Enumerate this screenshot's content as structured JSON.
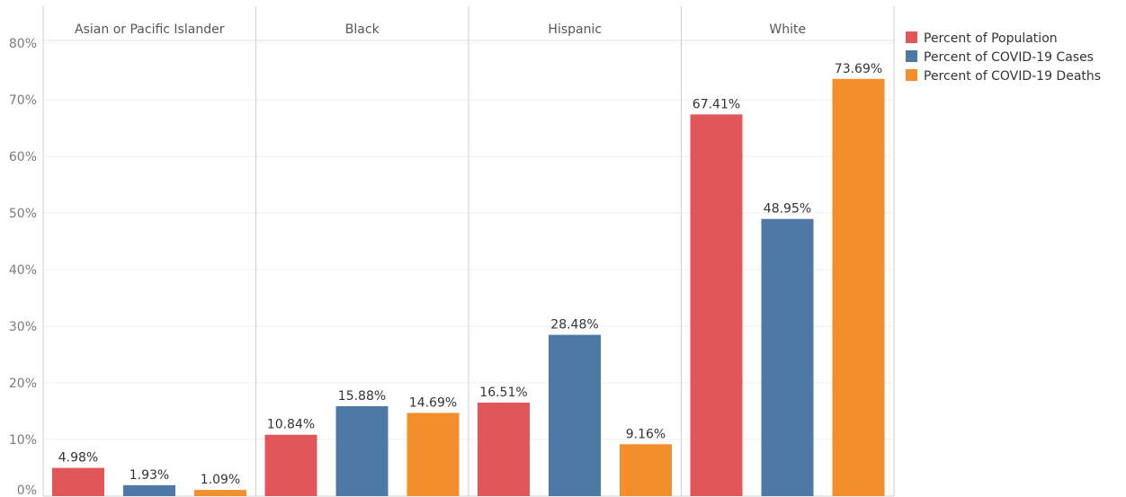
{
  "chart_data": {
    "type": "bar",
    "panels": [
      "Asian or Pacific Islander",
      "Black",
      "Hispanic",
      "White"
    ],
    "series": [
      {
        "name": "Percent of Population",
        "color": "#e15759",
        "values": [
          4.98,
          10.84,
          16.51,
          67.41
        ],
        "labels": [
          "4.98%",
          "10.84%",
          "16.51%",
          "67.41%"
        ]
      },
      {
        "name": "Percent of COVID-19 Cases",
        "color": "#4e79a7",
        "values": [
          1.93,
          15.88,
          28.48,
          48.95
        ],
        "labels": [
          "1.93%",
          "15.88%",
          "28.48%",
          "48.95%"
        ]
      },
      {
        "name": "Percent of COVID-19 Deaths",
        "color": "#f28e2b",
        "values": [
          1.09,
          14.69,
          9.16,
          73.69
        ],
        "labels": [
          "1.09%",
          "14.69%",
          "9.16%",
          "73.69%"
        ]
      }
    ],
    "y_ticks": [
      0,
      10,
      20,
      30,
      40,
      50,
      60,
      70,
      80
    ],
    "y_tick_labels": [
      "0%",
      "10%",
      "20%",
      "30%",
      "40%",
      "50%",
      "60%",
      "70%",
      "80%"
    ],
    "ylim": [
      0,
      80
    ],
    "grid": true,
    "legend_position": "top-right"
  }
}
